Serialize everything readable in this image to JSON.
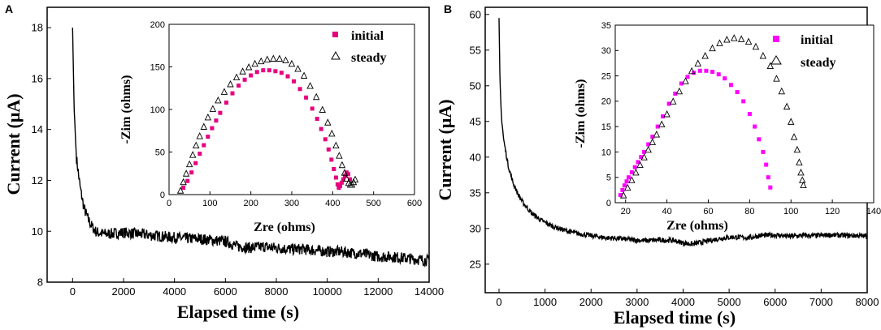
{
  "chart_data": [
    {
      "panel_label": "A",
      "type": "line",
      "xlabel": "Elapsed time (s)",
      "ylabel": "Current (μA)",
      "xlim": [
        -1000,
        14000
      ],
      "ylim": [
        8,
        18.8
      ],
      "xticks": [
        0,
        2000,
        4000,
        6000,
        8000,
        10000,
        12000,
        14000
      ],
      "yticks": [
        8,
        10,
        12,
        14,
        16,
        18
      ],
      "series": [
        {
          "name": "current",
          "color": "#000000",
          "x": [
            0,
            60,
            150,
            300,
            450,
            600,
            750,
            900,
            1000,
            1200,
            1500,
            2000,
            2500,
            3000,
            3500,
            4000,
            4500,
            5000,
            5500,
            6000,
            6500,
            7000,
            7500,
            8000,
            8500,
            9000,
            9500,
            10000,
            10500,
            11000,
            11500,
            12000,
            12500,
            13000,
            13500,
            14000
          ],
          "y": [
            18.0,
            14.8,
            12.9,
            11.7,
            10.9,
            10.5,
            10.2,
            10.0,
            9.95,
            9.9,
            9.9,
            9.95,
            9.9,
            9.85,
            9.8,
            9.75,
            9.72,
            9.7,
            9.65,
            9.6,
            9.4,
            9.35,
            9.4,
            9.35,
            9.3,
            9.3,
            9.25,
            9.2,
            9.2,
            9.15,
            9.1,
            9.0,
            9.0,
            8.95,
            8.9,
            8.85
          ],
          "noise": 0.22
        }
      ],
      "inset": {
        "xlabel": "Zre (ohms)",
        "ylabel": "-Zim (ohms)",
        "xlim": [
          0,
          600
        ],
        "ylim": [
          0,
          200
        ],
        "xticks": [
          0,
          100,
          200,
          300,
          400,
          500,
          600
        ],
        "yticks": [
          0,
          50,
          100,
          150,
          200
        ],
        "legend_position": "top-right",
        "series": [
          {
            "name": "initial",
            "marker": "square",
            "color": "#e6007e",
            "x": [
              35,
              45,
              55,
              65,
              75,
              85,
              95,
              105,
              115,
              125,
              140,
              155,
              170,
              185,
              200,
              215,
              230,
              245,
              260,
              275,
              290,
              305,
              320,
              335,
              350,
              362,
              372,
              382,
              390,
              397,
              403,
              408,
              412,
              415,
              418,
              422,
              426,
              430,
              434,
              438,
              442
            ],
            "y": [
              8,
              16,
              26,
              37,
              48,
              58,
              68,
              78,
              87,
              96,
              108,
              119,
              128,
              135,
              140,
              144,
              146,
              146,
              145,
              143,
              139,
              133,
              124,
              114,
              101,
              89,
              77,
              65,
              53,
              41,
              30,
              20,
              12,
              8,
              10,
              14,
              18,
              22,
              26,
              24,
              18
            ]
          },
          {
            "name": "steady",
            "marker": "triangle",
            "color": "#000000",
            "x": [
              28,
              35,
              42,
              50,
              58,
              66,
              75,
              85,
              95,
              107,
              120,
              135,
              150,
              165,
              180,
              195,
              210,
              225,
              240,
              255,
              270,
              285,
              300,
              315,
              330,
              345,
              360,
              375,
              388,
              398,
              408,
              416,
              423,
              429,
              434,
              439,
              443,
              447,
              451,
              455
            ],
            "y": [
              5,
              15,
              25,
              36,
              47,
              58,
              69,
              80,
              91,
              101,
              111,
              121,
              130,
              138,
              145,
              150,
              154,
              157,
              159,
              160,
              160,
              158,
              154,
              148,
              140,
              128,
              115,
              100,
              85,
              72,
              58,
              46,
              35,
              26,
              19,
              14,
              12,
              12,
              15,
              18
            ]
          }
        ]
      }
    },
    {
      "panel_label": "B",
      "type": "line",
      "xlabel": "Elapsed time (s)",
      "ylabel": "Current (μA)",
      "xlim": [
        -300,
        8000
      ],
      "ylim": [
        21,
        61
      ],
      "xticks": [
        0,
        1000,
        2000,
        3000,
        4000,
        5000,
        6000,
        7000,
        8000
      ],
      "yticks": [
        25,
        30,
        35,
        40,
        45,
        50,
        55,
        60
      ],
      "series": [
        {
          "name": "current",
          "color": "#000000",
          "x": [
            0,
            20,
            50,
            100,
            200,
            300,
            400,
            500,
            700,
            900,
            1100,
            1300,
            1500,
            1700,
            2000,
            2300,
            2600,
            2900,
            3200,
            3500,
            3800,
            4000,
            4200,
            4500,
            4800,
            5100,
            5400,
            5700,
            6000,
            6300,
            6600,
            6900,
            7200,
            7500,
            7800,
            8000
          ],
          "y": [
            59.5,
            51,
            46,
            42.5,
            38.8,
            36.5,
            35.0,
            33.8,
            32.2,
            31.2,
            30.5,
            30.0,
            29.6,
            29.3,
            29.0,
            28.7,
            28.6,
            28.4,
            28.3,
            28.4,
            28.3,
            28.0,
            27.8,
            28.2,
            28.6,
            28.8,
            28.7,
            29.0,
            29.1,
            28.9,
            29.0,
            29.0,
            29.1,
            29.0,
            29.0,
            28.9
          ],
          "noise": 0.35
        }
      ],
      "inset": {
        "xlabel": "Zre (ohms)",
        "ylabel": "-Zim (ohms)",
        "xlim": [
          15,
          140
        ],
        "ylim": [
          0,
          35
        ],
        "xticks": [
          20,
          40,
          60,
          80,
          100,
          120,
          140
        ],
        "yticks": [
          0,
          5,
          10,
          15,
          20,
          25,
          30,
          35
        ],
        "legend_position": "top-right",
        "series": [
          {
            "name": "initial",
            "marker": "square",
            "color": "#ff00ff",
            "x": [
              17.5,
              18.5,
              19.5,
              20.5,
              21.5,
              23,
              24.5,
              26,
              27.5,
              29,
              31,
              33,
              35.5,
              38,
              41,
              44,
              47,
              50,
              53,
              56,
              59,
              62,
              65,
              68,
              71,
              74,
              77,
              80,
              82.5,
              84.5,
              86.5,
              88,
              89,
              90
            ],
            "y": [
              1.5,
              2.5,
              3.4,
              4.2,
              5.0,
              6.0,
              7.0,
              8.0,
              9.0,
              10.0,
              11.5,
              13.0,
              15.0,
              17.0,
              19.5,
              21.5,
              23.5,
              24.8,
              25.6,
              26.0,
              26.0,
              25.8,
              25.3,
              24.5,
              23.2,
              21.8,
              20.0,
              17.5,
              15.0,
              12.5,
              10.0,
              7.5,
              5.0,
              3.0
            ]
          },
          {
            "name": "steady",
            "marker": "triangle",
            "color": "#000000",
            "x": [
              19,
              21,
              23,
              25,
              27,
              29,
              31,
              33,
              35,
              37.5,
              40,
              43,
              46,
              49,
              52,
              55,
              58.5,
              62,
              65.5,
              69,
              72.5,
              76,
              79.5,
              83,
              86.5,
              90,
              93,
              95.5,
              98,
              100,
              101.5,
              103,
              104,
              104.8,
              105.5,
              106
            ],
            "y": [
              1.5,
              3.0,
              4.5,
              6.0,
              7.5,
              9.0,
              10.5,
              12.0,
              13.5,
              15.5,
              17.5,
              20.0,
              22.0,
              24.0,
              26.0,
              27.5,
              29.0,
              30.5,
              31.5,
              32.2,
              32.5,
              32.3,
              31.8,
              30.8,
              29.0,
              27.0,
              24.5,
              22.0,
              19.0,
              16.0,
              13.0,
              10.5,
              8.0,
              6.0,
              4.5,
              3.5
            ]
          }
        ]
      }
    }
  ]
}
